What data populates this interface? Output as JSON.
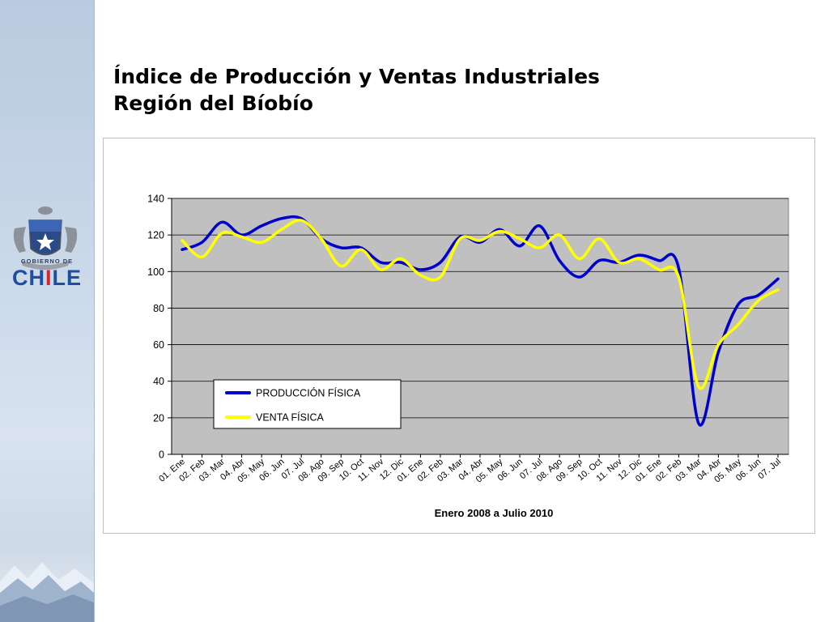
{
  "header": {
    "title_line1": "Índice de Producción y Ventas Industriales",
    "title_line2": "Región del Bíobío"
  },
  "logo": {
    "label": "GOBIERNO DE",
    "word_part1": "CH",
    "word_part2": "I",
    "word_part3": "LE"
  },
  "colors": {
    "plot_area": "#c0c0c0",
    "produccion": "#0000cc",
    "venta": "#ffff00"
  },
  "chart_data": {
    "type": "line",
    "xlabel": "Enero 2008  a Julio 2010",
    "ylabel": "",
    "ylim": [
      0,
      140
    ],
    "yticks": [
      0,
      20,
      40,
      60,
      80,
      100,
      120,
      140
    ],
    "grid": true,
    "legend_position": "bottom-left",
    "categories": [
      "01. Ene",
      "02. Feb",
      "03. Mar",
      "04. Abr",
      "05. May",
      "06. Jun",
      "07. Jul",
      "08. Ago",
      "09. Sep",
      "10. Oct",
      "11. Nov",
      "12. Dic",
      "01. Ene",
      "02. Feb",
      "03. Mar",
      "04. Abr",
      "05. May",
      "06. Jun",
      "07. Jul",
      "08. Ago",
      "09. Sep",
      "10. Oct",
      "11. Nov",
      "12. Dic",
      "01. Ene",
      "02. Feb",
      "03. Mar",
      "04. Abr",
      "05. May",
      "06. Jun",
      "07. Jul"
    ],
    "series": [
      {
        "name": "PRODUCCIÓN FÍSICA",
        "color": "#0000cc",
        "values": [
          112,
          116,
          127,
          120,
          125,
          129,
          129,
          118,
          113,
          113,
          105,
          105,
          101,
          105,
          119,
          116,
          123,
          114,
          125,
          106,
          97,
          106,
          105,
          109,
          106,
          102,
          17,
          56,
          82,
          87,
          96
        ]
      },
      {
        "name": "VENTA FÍSICA",
        "color": "#ffff00",
        "values": [
          117,
          108,
          121,
          119,
          116,
          123,
          128,
          118,
          103,
          112,
          101,
          107,
          98,
          97,
          118,
          117,
          122,
          118,
          113,
          120,
          107,
          118,
          105,
          107,
          101,
          97,
          37,
          60,
          71,
          84,
          90
        ]
      }
    ]
  }
}
